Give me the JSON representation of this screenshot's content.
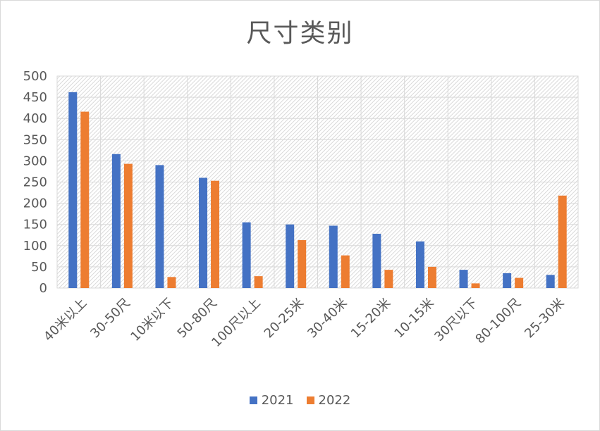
{
  "chart_data": {
    "type": "bar",
    "title": "尺寸类别",
    "categories": [
      "40米以上",
      "30-50尺",
      "10米以下",
      "50-80尺",
      "100尺以上",
      "20-25米",
      "30-40米",
      "15-20米",
      "10-15米",
      "30尺以下",
      "80-100尺",
      "25-30米"
    ],
    "series": [
      {
        "name": "2021",
        "color": "#4472C4",
        "values": [
          462,
          316,
          290,
          260,
          155,
          150,
          147,
          128,
          110,
          43,
          35,
          31
        ]
      },
      {
        "name": "2022",
        "color": "#ED7D31",
        "values": [
          416,
          293,
          26,
          253,
          28,
          113,
          77,
          43,
          50,
          11,
          24,
          218
        ]
      }
    ],
    "ylim": [
      0,
      500
    ],
    "yticks": [
      0,
      50,
      100,
      150,
      200,
      250,
      300,
      350,
      400,
      450,
      500
    ],
    "grid": true,
    "legend_position": "bottom"
  }
}
